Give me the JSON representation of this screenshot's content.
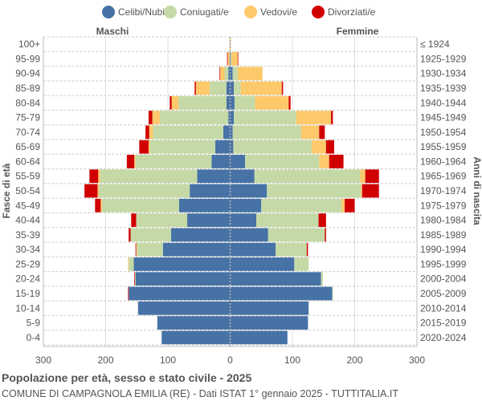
{
  "chart_data": {
    "type": "bar",
    "orientation": "horizontal-pyramid",
    "title": "Popolazione per età, sesso e stato civile - 2025",
    "subtitle": "COMUNE DI CAMPAGNOLA EMILIA (RE) - Dati ISTAT 1° gennaio 2025 - TUTTITALIA.IT",
    "left_label": "Maschi",
    "right_label": "Femmine",
    "ylabel_left": "Fasce di età",
    "ylabel_right": "Anni di nascita",
    "xlim": [
      -300,
      300
    ],
    "xticks": [
      "300",
      "200",
      "100",
      "0",
      "100",
      "200",
      "300"
    ],
    "grid": true,
    "legend_position": "top",
    "series_names": [
      "Celibi/Nubili",
      "Coniugati/e",
      "Vedovi/e",
      "Divorziati/e"
    ],
    "colors": [
      "#4672a6",
      "#c5d9a6",
      "#fdc96a",
      "#d00000"
    ],
    "categories": [
      "100+",
      "95-99",
      "90-94",
      "85-89",
      "80-84",
      "75-79",
      "70-74",
      "65-69",
      "60-64",
      "55-59",
      "50-54",
      "45-49",
      "40-44",
      "35-39",
      "30-34",
      "25-29",
      "20-24",
      "15-19",
      "10-14",
      "5-9",
      "0-4"
    ],
    "birth_years": [
      "≤ 1924",
      "1925-1929",
      "1930-1934",
      "1935-1939",
      "1940-1944",
      "1945-1949",
      "1950-1954",
      "1955-1959",
      "1960-1964",
      "1965-1969",
      "1970-1974",
      "1975-1979",
      "1980-1984",
      "1985-1989",
      "1990-1994",
      "1995-1999",
      "2000-2004",
      "2005-2009",
      "2010-2014",
      "2015-2019",
      "2020-2024"
    ],
    "males": {
      "Celibi/Nubili": [
        0,
        0,
        3,
        6,
        6,
        3,
        11,
        24,
        30,
        53,
        65,
        82,
        69,
        95,
        108,
        155,
        152,
        163,
        148,
        117,
        110
      ],
      "Coniugati/e": [
        0,
        1,
        6,
        27,
        77,
        110,
        113,
        105,
        122,
        156,
        146,
        124,
        82,
        65,
        42,
        8,
        1,
        0,
        0,
        0,
        0
      ],
      "Vedovi/e": [
        1,
        3,
        7,
        22,
        11,
        12,
        6,
        2,
        2,
        3,
        2,
        2,
        0,
        0,
        1,
        1,
        0,
        0,
        0,
        0,
        0
      ],
      "Divorziati/e": [
        0,
        1,
        1,
        2,
        3,
        6,
        6,
        15,
        12,
        14,
        21,
        9,
        8,
        3,
        1,
        0,
        1,
        1,
        0,
        0,
        0
      ]
    },
    "females": {
      "Celibi/Nubili": [
        0,
        1,
        4,
        6,
        7,
        6,
        4,
        5,
        24,
        39,
        59,
        50,
        42,
        61,
        73,
        103,
        146,
        164,
        126,
        125,
        92
      ],
      "Coniugati/e": [
        0,
        1,
        8,
        11,
        33,
        100,
        110,
        126,
        119,
        170,
        151,
        129,
        100,
        91,
        50,
        23,
        3,
        1,
        0,
        0,
        0
      ],
      "Vedovi/e": [
        1,
        10,
        40,
        66,
        54,
        56,
        29,
        23,
        16,
        8,
        2,
        5,
        0,
        0,
        0,
        0,
        0,
        0,
        0,
        0,
        0
      ],
      "Divorziati/e": [
        0,
        1,
        0,
        2,
        3,
        3,
        9,
        13,
        23,
        22,
        27,
        16,
        12,
        2,
        2,
        0,
        0,
        0,
        0,
        0,
        0
      ]
    }
  }
}
